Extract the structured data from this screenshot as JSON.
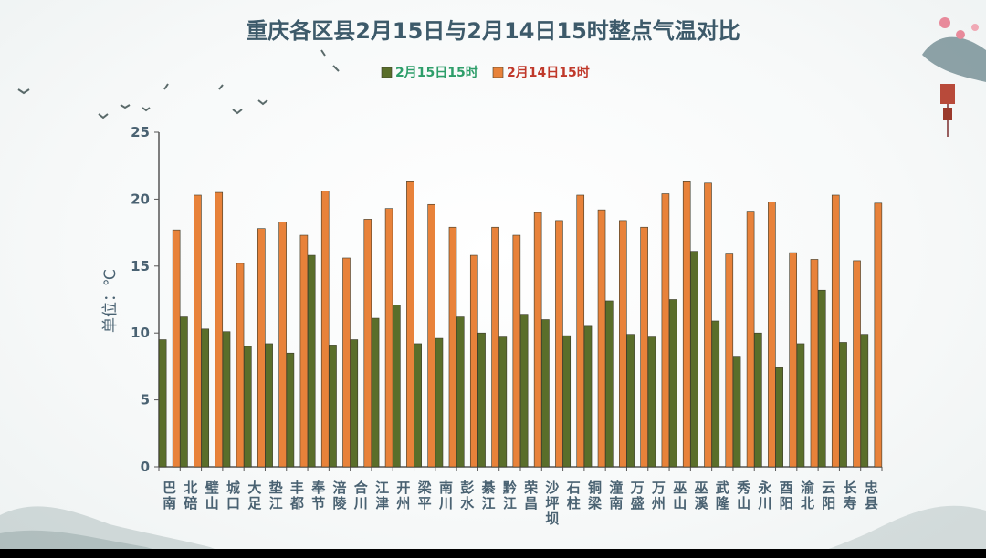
{
  "chart_data": {
    "type": "bar",
    "title": "重庆各区县2月15日与2月14日15时整点气温对比",
    "ylabel": "单位：℃",
    "xlabel": "",
    "ylim": [
      0,
      25
    ],
    "yticks": [
      0,
      5,
      10,
      15,
      20,
      25
    ],
    "legend_position": "top-center",
    "categories": [
      "巴南",
      "北碚",
      "璧山",
      "城口",
      "大足",
      "垫江",
      "丰都",
      "奉节",
      "涪陵",
      "合川",
      "江津",
      "开州",
      "梁平",
      "南川",
      "彭水",
      "綦江",
      "黔江",
      "荣昌",
      "沙坪坝",
      "石柱",
      "铜梁",
      "潼南",
      "万盛",
      "万州",
      "巫山",
      "巫溪",
      "武隆",
      "秀山",
      "永川",
      "酉阳",
      "渝北",
      "云阳",
      "长寿",
      "忠县"
    ],
    "series": [
      {
        "name": "2月15日15时",
        "color": "#5a6e2a",
        "label_color": "#2e9e6a",
        "values": [
          9.5,
          11.2,
          10.3,
          10.1,
          9.0,
          9.2,
          8.5,
          15.8,
          9.1,
          9.5,
          11.1,
          12.1,
          9.2,
          9.6,
          11.2,
          10.0,
          9.7,
          11.4,
          11.0,
          9.8,
          10.5,
          12.4,
          9.9,
          9.7,
          12.5,
          16.1,
          10.9,
          8.2,
          10.0,
          7.4,
          9.2,
          13.2,
          9.3,
          9.9
        ]
      },
      {
        "name": "2月14日15时",
        "color": "#e8823a",
        "label_color": "#c0392b",
        "values": [
          17.7,
          20.3,
          20.5,
          15.2,
          17.8,
          18.3,
          17.3,
          20.6,
          15.6,
          18.5,
          19.3,
          21.3,
          19.6,
          17.9,
          15.8,
          17.9,
          17.3,
          19.0,
          18.4,
          20.3,
          19.2,
          18.4,
          17.9,
          20.4,
          21.3,
          21.2,
          15.9,
          19.1,
          19.8,
          16.0,
          15.5,
          20.3,
          15.4,
          19.7
        ]
      }
    ]
  }
}
